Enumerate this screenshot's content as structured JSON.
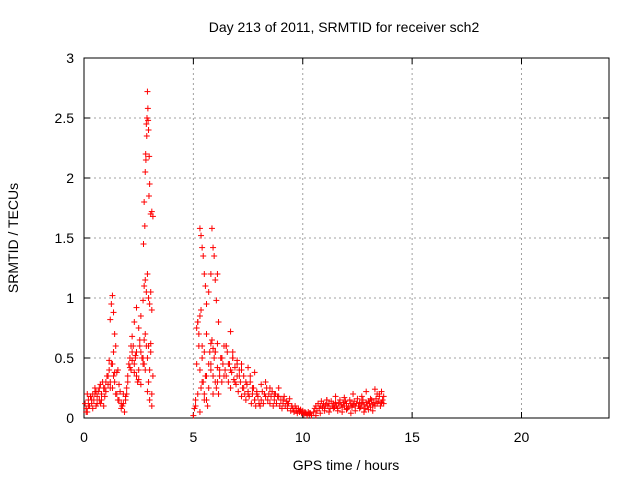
{
  "chart_data": {
    "type": "scatter",
    "title": "Day 213 of 2011, SRMTID for receiver sch2",
    "xlabel": "GPS time / hours",
    "ylabel": "SRMTID / TECUs",
    "xlim": [
      0,
      24
    ],
    "ylim": [
      0,
      3
    ],
    "x_ticks": [
      0,
      5,
      10,
      15,
      20
    ],
    "x_tick_labels": [
      "0",
      "5",
      "10",
      "15",
      "20"
    ],
    "y_ticks": [
      0,
      0.5,
      1,
      1.5,
      2,
      2.5,
      3
    ],
    "y_tick_labels": [
      "0",
      "0.5",
      "1",
      "1.5",
      "2",
      "2.5",
      "3"
    ],
    "grid": true,
    "marker": "plus",
    "color": "#ff0000",
    "series": [
      {
        "x": [
          0.05,
          0.1,
          0.15,
          0.2,
          0.25,
          0.3,
          0.35,
          0.4,
          0.45,
          0.5,
          0.55,
          0.6,
          0.65,
          0.7,
          0.75,
          0.8,
          0.85,
          0.9,
          0.95,
          1.0,
          1.05,
          1.1,
          1.15,
          1.2,
          1.25,
          1.3,
          1.35,
          1.4,
          1.45,
          1.5,
          1.55,
          1.6,
          1.65,
          1.7,
          1.75,
          1.8,
          1.85,
          1.9,
          1.95,
          2.0,
          2.05,
          2.1,
          2.15,
          2.2,
          2.25,
          2.3,
          2.35,
          2.4,
          2.45,
          2.5,
          2.55,
          2.6,
          2.65,
          2.7,
          2.75,
          2.8,
          2.85,
          2.9,
          2.95,
          3.0,
          3.05,
          3.1,
          3.15,
          0.1,
          0.2,
          0.3,
          0.4,
          0.5,
          0.6,
          0.7,
          0.8,
          0.9,
          1.0,
          1.1,
          1.2,
          1.3,
          1.4,
          1.5,
          1.6,
          1.7,
          1.8,
          1.9,
          2.0,
          2.1,
          2.2,
          2.3,
          2.4,
          2.5,
          2.6,
          2.7,
          2.8,
          2.9,
          3.0,
          3.1,
          0.15,
          0.35,
          0.55,
          0.75,
          0.95,
          1.15,
          1.35,
          1.55,
          1.75,
          1.95,
          2.15,
          2.35,
          2.55,
          2.75,
          2.95,
          3.05,
          1.2,
          1.25,
          1.3,
          1.35,
          1.4,
          1.45,
          2.2,
          2.3,
          2.4,
          2.5,
          2.6,
          2.7,
          2.75,
          2.8,
          2.85,
          2.9,
          2.95,
          3.0,
          3.05,
          3.1,
          2.72,
          2.75,
          2.8,
          2.82,
          2.85,
          2.88,
          2.9,
          2.92,
          2.95,
          2.98,
          3.0,
          3.05,
          3.1,
          3.15,
          2.78,
          2.83,
          2.87,
          2.93,
          2.97,
          5.0,
          5.05,
          5.1,
          5.15,
          5.2,
          5.25,
          5.3,
          5.35,
          5.4,
          5.45,
          5.5,
          5.55,
          5.6,
          5.65,
          5.7,
          5.75,
          5.8,
          5.85,
          5.9,
          5.95,
          6.0,
          6.05,
          6.1,
          6.15,
          6.2,
          6.25,
          6.3,
          6.35,
          6.4,
          6.45,
          6.5,
          6.55,
          6.6,
          6.65,
          6.7,
          6.75,
          6.8,
          6.85,
          6.9,
          6.95,
          7.0,
          7.05,
          7.1,
          7.15,
          7.2,
          7.25,
          7.3,
          7.35,
          7.4,
          7.45,
          7.5,
          7.55,
          7.6,
          7.65,
          7.7,
          7.75,
          7.8,
          7.85,
          7.9,
          7.95,
          8.0,
          5.1,
          5.2,
          5.3,
          5.4,
          5.5,
          5.6,
          5.7,
          5.8,
          5.9,
          6.0,
          6.1,
          6.2,
          6.3,
          6.4,
          6.5,
          6.6,
          6.7,
          6.8,
          6.9,
          7.0,
          7.1,
          7.2,
          7.3,
          7.4,
          7.5,
          7.6,
          7.7,
          7.8,
          7.9,
          5.3,
          5.35,
          5.4,
          5.45,
          5.5,
          5.55,
          5.6,
          5.7,
          5.8,
          5.85,
          5.9,
          5.95,
          6.0,
          6.05,
          6.1,
          6.15,
          5.15,
          5.2,
          5.25,
          5.3,
          5.35,
          5.4,
          5.5,
          5.6,
          5.8,
          5.9,
          6.0,
          6.1,
          6.3,
          6.5,
          6.7,
          6.8,
          7.0,
          7.2,
          7.5,
          7.8,
          8.05,
          8.1,
          8.15,
          8.2,
          8.25,
          8.3,
          8.35,
          8.4,
          8.45,
          8.5,
          8.55,
          8.6,
          8.65,
          8.7,
          8.75,
          8.8,
          8.85,
          8.9,
          8.95,
          9.0,
          9.05,
          9.1,
          9.15,
          9.2,
          9.25,
          9.3,
          9.35,
          9.4,
          9.45,
          9.5,
          9.55,
          9.6,
          9.65,
          9.7,
          9.75,
          9.8,
          9.85,
          9.9,
          9.95,
          10.0,
          10.05,
          10.1,
          10.15,
          10.2,
          10.25,
          10.3,
          10.35,
          10.4,
          8.1,
          8.3,
          8.5,
          8.7,
          8.9,
          9.1,
          9.3,
          9.5,
          9.7,
          9.9,
          10.1,
          10.3,
          10.5,
          10.55,
          10.6,
          10.65,
          10.7,
          10.75,
          10.8,
          10.85,
          10.9,
          10.95,
          11.0,
          11.05,
          11.1,
          11.15,
          11.2,
          11.25,
          11.3,
          11.35,
          11.4,
          11.45,
          11.5,
          11.55,
          11.6,
          11.65,
          11.7,
          11.75,
          11.8,
          11.85,
          11.9,
          11.95,
          12.0,
          12.05,
          12.1,
          12.15,
          12.2,
          12.25,
          12.3,
          12.35,
          12.4,
          12.45,
          12.5,
          12.55,
          12.6,
          12.65,
          12.7,
          12.75,
          12.8,
          12.85,
          12.9,
          12.95,
          13.0,
          13.05,
          13.1,
          13.15,
          13.2,
          13.25,
          13.3,
          13.35,
          13.4,
          13.45,
          13.5,
          13.55,
          13.6,
          13.65,
          13.7,
          10.6,
          10.8,
          11.0,
          11.2,
          11.4,
          11.6,
          11.8,
          12.0,
          12.2,
          12.4,
          12.6,
          12.8,
          13.0,
          13.2,
          13.4,
          13.6,
          11.1,
          11.5,
          11.9,
          12.3,
          12.7,
          12.9,
          13.1,
          13.3,
          13.5,
          13.7
        ],
        "y": [
          0.12,
          0.08,
          0.05,
          0.15,
          0.1,
          0.18,
          0.12,
          0.2,
          0.15,
          0.25,
          0.1,
          0.18,
          0.22,
          0.15,
          0.12,
          0.2,
          0.3,
          0.25,
          0.18,
          0.22,
          0.35,
          0.28,
          0.4,
          0.3,
          0.45,
          0.25,
          0.35,
          0.3,
          0.2,
          0.38,
          0.15,
          0.28,
          0.22,
          0.12,
          0.1,
          0.2,
          0.05,
          0.15,
          0.25,
          0.35,
          0.45,
          0.5,
          0.4,
          0.55,
          0.6,
          0.45,
          0.5,
          0.35,
          0.3,
          0.4,
          0.6,
          0.55,
          0.5,
          0.45,
          0.65,
          0.7,
          0.6,
          0.5,
          0.3,
          0.4,
          0.55,
          0.2,
          0.35,
          0.05,
          0.1,
          0.18,
          0.08,
          0.2,
          0.12,
          0.25,
          0.15,
          0.1,
          0.3,
          0.35,
          0.25,
          0.45,
          0.38,
          0.2,
          0.15,
          0.08,
          0.12,
          0.18,
          0.3,
          0.42,
          0.48,
          0.38,
          0.55,
          0.32,
          0.28,
          0.5,
          0.4,
          0.22,
          0.15,
          0.1,
          0.2,
          0.15,
          0.22,
          0.28,
          0.25,
          0.48,
          0.55,
          0.4,
          0.1,
          0.2,
          0.6,
          0.52,
          0.65,
          0.45,
          0.6,
          0.62,
          0.82,
          0.95,
          1.02,
          0.88,
          0.7,
          0.6,
          0.68,
          0.8,
          0.92,
          0.75,
          0.85,
          0.98,
          1.1,
          1.15,
          1.05,
          1.2,
          1.0,
          0.95,
          1.05,
          0.9,
          1.45,
          1.8,
          2.05,
          2.2,
          2.45,
          2.5,
          2.72,
          2.58,
          2.4,
          2.18,
          1.95,
          1.7,
          1.72,
          1.68,
          1.6,
          2.15,
          2.35,
          2.48,
          1.85,
          0.02,
          0.08,
          0.15,
          0.45,
          0.8,
          0.6,
          0.4,
          0.25,
          0.5,
          0.3,
          0.2,
          0.35,
          0.15,
          0.1,
          0.45,
          0.55,
          0.4,
          0.65,
          0.35,
          0.5,
          0.3,
          0.25,
          0.42,
          0.2,
          0.35,
          0.5,
          0.3,
          0.45,
          0.6,
          0.4,
          0.35,
          0.55,
          0.3,
          0.45,
          0.25,
          0.38,
          0.5,
          0.32,
          0.42,
          0.28,
          0.35,
          0.22,
          0.4,
          0.3,
          0.18,
          0.25,
          0.35,
          0.2,
          0.15,
          0.28,
          0.22,
          0.18,
          0.3,
          0.12,
          0.2,
          0.25,
          0.15,
          0.1,
          0.22,
          0.18,
          0.12,
          0.1,
          0.2,
          0.05,
          0.3,
          0.15,
          0.35,
          0.25,
          0.45,
          0.2,
          0.55,
          0.3,
          0.4,
          0.5,
          0.35,
          0.6,
          0.45,
          0.4,
          0.5,
          0.3,
          0.45,
          0.35,
          0.4,
          0.25,
          0.3,
          0.2,
          0.35,
          0.25,
          0.15,
          0.2,
          1.58,
          1.52,
          1.42,
          1.35,
          1.2,
          1.1,
          0.95,
          1.05,
          1.2,
          1.58,
          1.42,
          1.35,
          1.15,
          0.98,
          1.2,
          0.8,
          0.75,
          0.8,
          0.7,
          0.85,
          0.9,
          0.6,
          0.55,
          0.7,
          0.62,
          0.58,
          0.55,
          0.62,
          0.5,
          0.6,
          0.72,
          0.55,
          0.48,
          0.45,
          0.42,
          0.38,
          0.1,
          0.15,
          0.22,
          0.12,
          0.2,
          0.18,
          0.25,
          0.15,
          0.2,
          0.12,
          0.18,
          0.22,
          0.1,
          0.15,
          0.2,
          0.12,
          0.18,
          0.25,
          0.1,
          0.15,
          0.08,
          0.12,
          0.18,
          0.1,
          0.14,
          0.08,
          0.12,
          0.16,
          0.06,
          0.1,
          0.08,
          0.05,
          0.1,
          0.06,
          0.04,
          0.08,
          0.05,
          0.07,
          0.04,
          0.06,
          0.03,
          0.05,
          0.04,
          0.02,
          0.05,
          0.03,
          0.04,
          0.02,
          0.28,
          0.3,
          0.25,
          0.2,
          0.18,
          0.15,
          0.12,
          0.1,
          0.08,
          0.06,
          0.05,
          0.04,
          0.05,
          0.08,
          0.1,
          0.06,
          0.12,
          0.08,
          0.1,
          0.14,
          0.09,
          0.12,
          0.08,
          0.11,
          0.15,
          0.1,
          0.12,
          0.08,
          0.14,
          0.1,
          0.12,
          0.09,
          0.13,
          0.1,
          0.08,
          0.12,
          0.15,
          0.11,
          0.09,
          0.13,
          0.1,
          0.14,
          0.12,
          0.08,
          0.1,
          0.15,
          0.12,
          0.09,
          0.11,
          0.14,
          0.1,
          0.12,
          0.16,
          0.1,
          0.13,
          0.09,
          0.12,
          0.15,
          0.11,
          0.08,
          0.13,
          0.1,
          0.14,
          0.12,
          0.09,
          0.15,
          0.11,
          0.13,
          0.1,
          0.16,
          0.12,
          0.14,
          0.18,
          0.1,
          0.13,
          0.15,
          0.12,
          0.02,
          0.04,
          0.06,
          0.05,
          0.08,
          0.06,
          0.05,
          0.07,
          0.04,
          0.06,
          0.08,
          0.05,
          0.07,
          0.06,
          0.2,
          0.22,
          0.15,
          0.18,
          0.17,
          0.2,
          0.18,
          0.22,
          0.16,
          0.24,
          0.2,
          0.18
        ]
      }
    ]
  }
}
